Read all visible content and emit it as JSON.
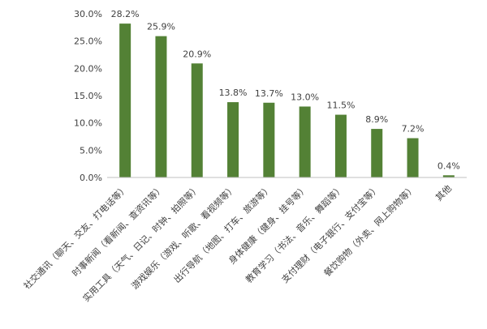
{
  "chart_data": {
    "type": "bar",
    "categories": [
      "社交通讯（聊天、交友、打电话等）",
      "时事新闻（看新闻、查资讯等）",
      "实用工具（天气、日记、时钟、拍照等）",
      "游戏娱乐（游戏、听歌、看视频等）",
      "出行导航（地图、打车、旅游等）",
      "身体健康（健身、挂号等）",
      "教育学习（书法、音乐、舞蹈等）",
      "支付理财（电子银行、支付宝等）",
      "餐饮购物（外卖、网上购物等）",
      "其他"
    ],
    "values": [
      28.2,
      25.9,
      20.9,
      13.8,
      13.7,
      13.0,
      11.5,
      8.9,
      7.2,
      0.4
    ],
    "value_labels": [
      "28.2%",
      "25.9%",
      "20.9%",
      "13.8%",
      "13.7%",
      "13.0%",
      "11.5%",
      "8.9%",
      "7.2%",
      "0.4%"
    ],
    "y_ticks": [
      0,
      5,
      10,
      15,
      20,
      25,
      30
    ],
    "y_tick_labels": [
      "0.0%",
      "5.0%",
      "10.0%",
      "15.0%",
      "20.0%",
      "25.0%",
      "30.0%"
    ],
    "ylim": [
      0,
      30
    ],
    "title": "",
    "xlabel": "",
    "ylabel": "",
    "grid": false,
    "legend": "none",
    "bar_color": "#538135",
    "axis_color": "#bfbfbf",
    "text_color": "#404040"
  }
}
